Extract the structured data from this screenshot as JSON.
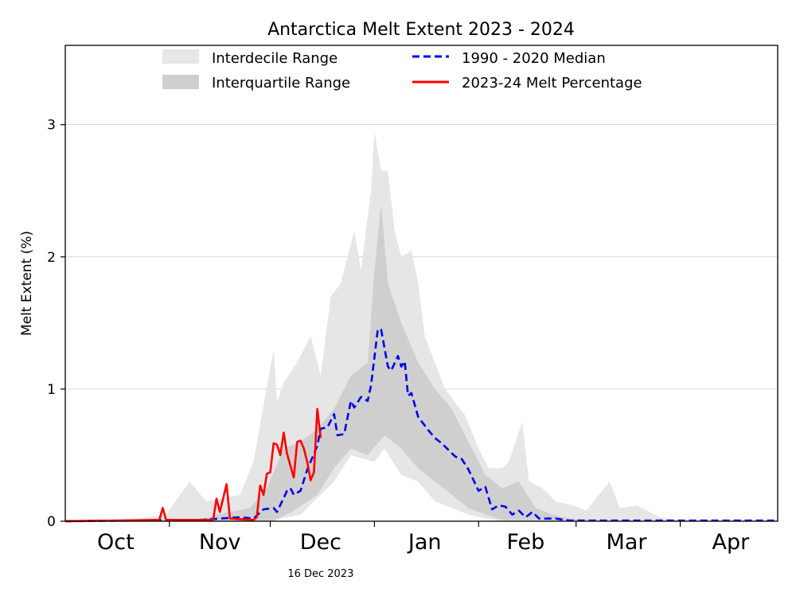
{
  "chart_data": {
    "type": "area",
    "title": "Antarctica Melt Extent 2023 - 2024",
    "xlabel": "",
    "ylabel": "Melt Extent (%)",
    "xlim": [
      "2023-10-01",
      "2024-04-30"
    ],
    "ylim": [
      0,
      3.6
    ],
    "grid": "horizontal",
    "legend_placement": "top",
    "y_ticks": [
      0,
      1,
      2,
      3
    ],
    "x_tick_dates": [
      "2023-11-01",
      "2023-12-01",
      "2024-01-01",
      "2024-02-01",
      "2024-03-01",
      "2024-04-01"
    ],
    "x_month_labels": [
      {
        "label": "Oct",
        "date": "2023-10-16"
      },
      {
        "label": "Nov",
        "date": "2023-11-16"
      },
      {
        "label": "Dec",
        "date": "2023-12-16"
      },
      {
        "label": "Jan",
        "date": "2024-01-16"
      },
      {
        "label": "Feb",
        "date": "2024-02-15"
      },
      {
        "label": "Mar",
        "date": "2024-03-16"
      },
      {
        "label": "Apr",
        "date": "2024-04-16"
      }
    ],
    "annotation": {
      "text": "16 Dec 2023",
      "date": "2023-12-16"
    },
    "bands": [
      {
        "name": "Interdecile Range",
        "color": "#e6e6e6",
        "upper": [
          [
            "2023-10-01",
            0.01
          ],
          [
            "2023-10-21",
            0.01
          ],
          [
            "2023-10-31",
            0.05
          ],
          [
            "2023-11-07",
            0.3
          ],
          [
            "2023-11-12",
            0.15
          ],
          [
            "2023-11-22",
            0.2
          ],
          [
            "2023-11-26",
            0.45
          ],
          [
            "2023-12-02",
            1.3
          ],
          [
            "2023-12-03",
            0.9
          ],
          [
            "2023-12-05",
            1.05
          ],
          [
            "2023-12-09",
            1.2
          ],
          [
            "2023-12-13",
            1.4
          ],
          [
            "2023-12-16",
            1.1
          ],
          [
            "2023-12-19",
            1.7
          ],
          [
            "2023-12-22",
            1.8
          ],
          [
            "2023-12-26",
            2.2
          ],
          [
            "2023-12-28",
            1.9
          ],
          [
            "2023-12-31",
            2.5
          ],
          [
            "2024-01-01",
            2.95
          ],
          [
            "2024-01-03",
            2.65
          ],
          [
            "2024-01-05",
            2.65
          ],
          [
            "2024-01-07",
            2.2
          ],
          [
            "2024-01-09",
            2.0
          ],
          [
            "2024-01-12",
            2.05
          ],
          [
            "2024-01-14",
            1.8
          ],
          [
            "2024-01-16",
            1.4
          ],
          [
            "2024-01-19",
            1.2
          ],
          [
            "2024-01-22",
            1.0
          ],
          [
            "2024-01-25",
            0.9
          ],
          [
            "2024-01-28",
            0.8
          ],
          [
            "2024-02-01",
            0.55
          ],
          [
            "2024-02-04",
            0.4
          ],
          [
            "2024-02-08",
            0.4
          ],
          [
            "2024-02-10",
            0.45
          ],
          [
            "2024-02-14",
            0.75
          ],
          [
            "2024-02-16",
            0.3
          ],
          [
            "2024-02-20",
            0.25
          ],
          [
            "2024-02-24",
            0.15
          ],
          [
            "2024-02-29",
            0.12
          ],
          [
            "2024-03-04",
            0.08
          ],
          [
            "2024-03-11",
            0.3
          ],
          [
            "2024-03-14",
            0.1
          ],
          [
            "2024-03-19",
            0.12
          ],
          [
            "2024-03-26",
            0.03
          ],
          [
            "2024-03-31",
            0.01
          ],
          [
            "2024-04-30",
            0.005
          ]
        ],
        "lower": [
          [
            "2023-10-01",
            0
          ],
          [
            "2023-11-30",
            0
          ],
          [
            "2023-12-10",
            0.05
          ],
          [
            "2023-12-20",
            0.3
          ],
          [
            "2023-12-25",
            0.5
          ],
          [
            "2024-01-01",
            0.45
          ],
          [
            "2024-01-04",
            0.55
          ],
          [
            "2024-01-09",
            0.35
          ],
          [
            "2024-01-14",
            0.3
          ],
          [
            "2024-01-19",
            0.15
          ],
          [
            "2024-01-24",
            0.1
          ],
          [
            "2024-01-29",
            0.05
          ],
          [
            "2024-02-03",
            0.02
          ],
          [
            "2024-02-08",
            0
          ],
          [
            "2024-04-30",
            0
          ]
        ]
      },
      {
        "name": "Interquartile Range",
        "color": "#cfcfcf",
        "upper": [
          [
            "2023-10-01",
            0.01
          ],
          [
            "2023-11-10",
            0.01
          ],
          [
            "2023-11-15",
            0.05
          ],
          [
            "2023-11-25",
            0.1
          ],
          [
            "2023-11-30",
            0.25
          ],
          [
            "2023-12-05",
            0.55
          ],
          [
            "2023-12-10",
            0.6
          ],
          [
            "2023-12-15",
            0.7
          ],
          [
            "2023-12-20",
            0.85
          ],
          [
            "2023-12-25",
            1.1
          ],
          [
            "2023-12-30",
            1.2
          ],
          [
            "2024-01-01",
            1.9
          ],
          [
            "2024-01-03",
            2.4
          ],
          [
            "2024-01-05",
            1.8
          ],
          [
            "2024-01-09",
            1.5
          ],
          [
            "2024-01-14",
            1.2
          ],
          [
            "2024-01-19",
            1.0
          ],
          [
            "2024-01-24",
            0.85
          ],
          [
            "2024-01-29",
            0.6
          ],
          [
            "2024-02-03",
            0.35
          ],
          [
            "2024-02-08",
            0.25
          ],
          [
            "2024-02-13",
            0.3
          ],
          [
            "2024-02-18",
            0.1
          ],
          [
            "2024-02-23",
            0.05
          ],
          [
            "2024-02-28",
            0.02
          ],
          [
            "2024-03-09",
            0.01
          ],
          [
            "2024-04-30",
            0
          ]
        ],
        "lower": [
          [
            "2023-10-01",
            0
          ],
          [
            "2023-12-02",
            0
          ],
          [
            "2023-12-08",
            0.08
          ],
          [
            "2023-12-15",
            0.2
          ],
          [
            "2023-12-20",
            0.4
          ],
          [
            "2023-12-25",
            0.55
          ],
          [
            "2023-12-30",
            0.5
          ],
          [
            "2024-01-04",
            0.65
          ],
          [
            "2024-01-09",
            0.55
          ],
          [
            "2024-01-14",
            0.4
          ],
          [
            "2024-01-19",
            0.3
          ],
          [
            "2024-01-24",
            0.2
          ],
          [
            "2024-01-29",
            0.1
          ],
          [
            "2024-02-03",
            0.05
          ],
          [
            "2024-02-08",
            0.01
          ],
          [
            "2024-04-30",
            0
          ]
        ]
      }
    ],
    "series": [
      {
        "name": "1990 - 2020 Median",
        "color": "#0000ee",
        "style": "dashed",
        "points": [
          [
            "2023-10-01",
            0
          ],
          [
            "2023-11-10",
            0.01
          ],
          [
            "2023-11-22",
            0.03
          ],
          [
            "2023-11-26",
            0.02
          ],
          [
            "2023-11-29",
            0.09
          ],
          [
            "2023-12-02",
            0.1
          ],
          [
            "2023-12-03",
            0.07
          ],
          [
            "2023-12-06",
            0.23
          ],
          [
            "2023-12-07",
            0.25
          ],
          [
            "2023-12-08",
            0.2
          ],
          [
            "2023-12-10",
            0.23
          ],
          [
            "2023-12-12",
            0.39
          ],
          [
            "2023-12-15",
            0.57
          ],
          [
            "2023-12-16",
            0.7
          ],
          [
            "2023-12-18",
            0.71
          ],
          [
            "2023-12-20",
            0.81
          ],
          [
            "2023-12-21",
            0.65
          ],
          [
            "2023-12-23",
            0.66
          ],
          [
            "2023-12-25",
            0.91
          ],
          [
            "2023-12-26",
            0.86
          ],
          [
            "2023-12-28",
            0.94
          ],
          [
            "2023-12-30",
            0.91
          ],
          [
            "2023-12-31",
            1.03
          ],
          [
            "2024-01-02",
            1.45
          ],
          [
            "2024-01-03",
            1.45
          ],
          [
            "2024-01-05",
            1.17
          ],
          [
            "2024-01-06",
            1.14
          ],
          [
            "2024-01-08",
            1.25
          ],
          [
            "2024-01-09",
            1.17
          ],
          [
            "2024-01-10",
            1.21
          ],
          [
            "2024-01-11",
            0.95
          ],
          [
            "2024-01-12",
            0.97
          ],
          [
            "2024-01-14",
            0.79
          ],
          [
            "2024-01-17",
            0.69
          ],
          [
            "2024-01-19",
            0.63
          ],
          [
            "2024-01-21",
            0.59
          ],
          [
            "2024-01-25",
            0.49
          ],
          [
            "2024-01-27",
            0.47
          ],
          [
            "2024-01-29",
            0.39
          ],
          [
            "2024-02-01",
            0.23
          ],
          [
            "2024-02-03",
            0.26
          ],
          [
            "2024-02-05",
            0.09
          ],
          [
            "2024-02-07",
            0.12
          ],
          [
            "2024-02-09",
            0.11
          ],
          [
            "2024-02-11",
            0.05
          ],
          [
            "2024-02-13",
            0.08
          ],
          [
            "2024-02-15",
            0.03
          ],
          [
            "2024-02-17",
            0.07
          ],
          [
            "2024-02-19",
            0.02
          ],
          [
            "2024-02-24",
            0.02
          ],
          [
            "2024-02-28",
            0.005
          ],
          [
            "2024-04-30",
            0.005
          ]
        ]
      },
      {
        "name": "2023-24 Melt Percentage",
        "color": "#ff0000",
        "style": "solid",
        "points": [
          [
            "2023-10-01",
            0
          ],
          [
            "2023-10-29",
            0.01
          ],
          [
            "2023-10-30",
            0.1
          ],
          [
            "2023-10-31",
            0.01
          ],
          [
            "2023-11-14",
            0.01
          ],
          [
            "2023-11-15",
            0.17
          ],
          [
            "2023-11-16",
            0.07
          ],
          [
            "2023-11-18",
            0.28
          ],
          [
            "2023-11-19",
            0.02
          ],
          [
            "2023-11-26",
            0.01
          ],
          [
            "2023-11-27",
            0.03
          ],
          [
            "2023-11-28",
            0.27
          ],
          [
            "2023-11-29",
            0.2
          ],
          [
            "2023-11-30",
            0.36
          ],
          [
            "2023-12-01",
            0.37
          ],
          [
            "2023-12-02",
            0.59
          ],
          [
            "2023-12-03",
            0.58
          ],
          [
            "2023-12-04",
            0.5
          ],
          [
            "2023-12-05",
            0.67
          ],
          [
            "2023-12-06",
            0.51
          ],
          [
            "2023-12-07",
            0.42
          ],
          [
            "2023-12-08",
            0.33
          ],
          [
            "2023-12-09",
            0.6
          ],
          [
            "2023-12-10",
            0.61
          ],
          [
            "2023-12-11",
            0.55
          ],
          [
            "2023-12-12",
            0.45
          ],
          [
            "2023-12-13",
            0.31
          ],
          [
            "2023-12-14",
            0.37
          ],
          [
            "2023-12-15",
            0.85
          ],
          [
            "2023-12-16",
            0.63
          ]
        ]
      }
    ]
  }
}
